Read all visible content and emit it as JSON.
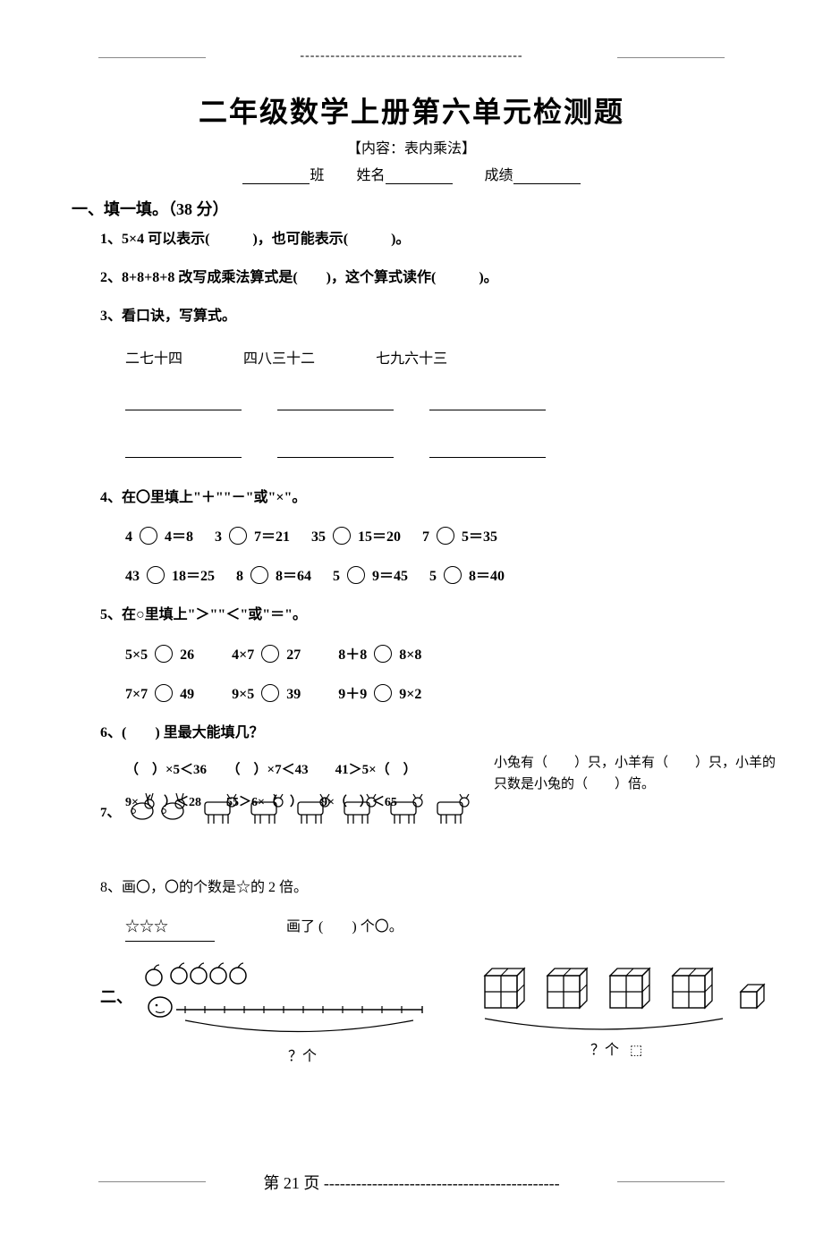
{
  "header": {
    "dashes": "--------------------------------------------"
  },
  "title": "二年级数学上册第六单元检测题",
  "subtitle": "【内容：表内乘法】",
  "nameline": {
    "class_label": "班",
    "name_label": "姓名",
    "score_label": "成绩"
  },
  "sectionA": "一、填一填。（38 分）",
  "q1": "1、5×4 可以表示(　　　)，也可能表示(　　　)。",
  "q2": "2、8+8+8+8 改写成乘法算式是(　　)，这个算式读作(　　　)。",
  "q3": {
    "stem": "3、看口诀，写算式。",
    "items": [
      "二七十四",
      "四八三十二",
      "七九六十三"
    ]
  },
  "q4": {
    "stem": "4、在〇里填上\"＋\"\"－\"或\"×\"。",
    "row1": [
      {
        "a": "4",
        "b": "4",
        "r": "8"
      },
      {
        "a": "3",
        "b": "7",
        "r": "21"
      },
      {
        "a": "35",
        "b": "15",
        "r": "20"
      },
      {
        "a": "7",
        "b": "5",
        "r": "35"
      }
    ],
    "row2": [
      {
        "a": "43",
        "b": "18",
        "r": "25"
      },
      {
        "a": "8",
        "b": "8",
        "r": "64"
      },
      {
        "a": "5",
        "b": "9",
        "r": "45"
      },
      {
        "a": "5",
        "b": "8",
        "r": "40"
      }
    ]
  },
  "q5": {
    "stem": "5、在○里填上\"＞\"\"＜\"或\"＝\"。",
    "row1": [
      {
        "a": "5×5",
        "b": "26"
      },
      {
        "a": "4×7",
        "b": "27"
      },
      {
        "a": "8＋8",
        "b": "8×8"
      }
    ],
    "row2": [
      {
        "a": "7×7",
        "b": "49"
      },
      {
        "a": "9×5",
        "b": "39"
      },
      {
        "a": "9＋9",
        "b": "9×2"
      }
    ]
  },
  "q6": {
    "stem": "6、(　　) 里最大能填几？",
    "row1": "（　）×5＜36　　（　）×7＜43　　41＞5×（　）",
    "row2": "9×（　）＜28　　55＞6×（　）　　9×（　）＜65"
  },
  "q7": {
    "label": "7、",
    "text": "小兔有（　　）只，小羊有（　　）只，小羊的只数是小兔的（　　）倍。",
    "rabbit_count": 2,
    "goat_count": 6
  },
  "q8": {
    "stem": "8、画〇，〇的个数是☆的 2 倍。",
    "stars": "☆☆☆",
    "drew": "画了 (　　) 个〇。"
  },
  "section2": "二、",
  "fig_left": {
    "apple_count": 4,
    "caption": "？个"
  },
  "fig_right": {
    "groups": 4,
    "extra": 1,
    "caption": "？个"
  },
  "footer": {
    "text": "第 21 页",
    "dashes": "--------------------------------------------"
  }
}
